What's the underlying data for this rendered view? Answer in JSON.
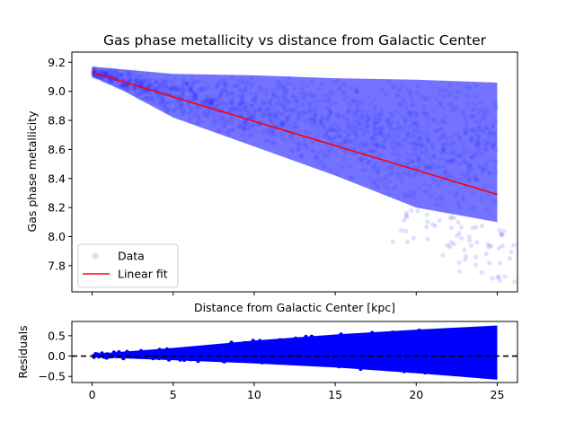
{
  "chart_data": [
    {
      "type": "scatter",
      "title": "Gas phase metallicity vs distance from Galactic Center",
      "xlabel": "Distance from Galactic Center [kpc]",
      "ylabel": "Gas phase metallicity",
      "xlim": [
        -1.25,
        26.25
      ],
      "ylim": [
        7.62,
        9.27
      ],
      "xticks": [
        0,
        5,
        10,
        15,
        20,
        25
      ],
      "xtick_labels_shown": false,
      "yticks": [
        7.8,
        8.0,
        8.2,
        8.4,
        8.6,
        8.8,
        9.0,
        9.2
      ],
      "ytick_labels": [
        "7.8",
        "8.0",
        "8.2",
        "8.4",
        "8.6",
        "8.8",
        "9.0",
        "9.2"
      ],
      "grid": false,
      "legend_position": "bottom-left",
      "series": [
        {
          "name": "Data",
          "kind": "scatter",
          "color": "#0000ff",
          "alpha": 0.07,
          "x_range": [
            0,
            25
          ],
          "upper_envelope": [
            [
              0,
              9.17
            ],
            [
              2,
              9.15
            ],
            [
              5,
              9.12
            ],
            [
              10,
              9.11
            ],
            [
              15,
              9.09
            ],
            [
              20,
              9.08
            ],
            [
              25,
              9.06
            ]
          ],
          "lower_envelope": [
            [
              0,
              9.1
            ],
            [
              2,
              9.0
            ],
            [
              5,
              8.82
            ],
            [
              10,
              8.62
            ],
            [
              15,
              8.42
            ],
            [
              20,
              8.2
            ],
            [
              25,
              8.1
            ]
          ],
          "sparse_outliers_low": [
            [
              20,
              7.95
            ],
            [
              22,
              7.8
            ],
            [
              24,
              7.75
            ],
            [
              25,
              7.68
            ]
          ]
        },
        {
          "name": "Linear fit",
          "kind": "line",
          "color": "#ff0000",
          "x": [
            0,
            25
          ],
          "y": [
            9.13,
            8.29
          ]
        }
      ]
    },
    {
      "type": "scatter",
      "title": "",
      "xlabel": "",
      "ylabel": "Residuals",
      "xlim": [
        -1.25,
        26.25
      ],
      "ylim": [
        -0.65,
        0.85
      ],
      "xticks": [
        0,
        5,
        10,
        15,
        20,
        25
      ],
      "xtick_labels": [
        "0",
        "5",
        "10",
        "15",
        "20",
        "25"
      ],
      "yticks": [
        -0.5,
        0.0,
        0.5
      ],
      "ytick_labels": [
        "−0.5",
        "0.0",
        "0.5"
      ],
      "grid": false,
      "reference_line": {
        "y": 0,
        "style": "dashed",
        "color": "#000000"
      },
      "series": [
        {
          "name": "Residuals",
          "kind": "scatter",
          "color": "#0000ff",
          "x_range": [
            0,
            25
          ],
          "upper_envelope": [
            [
              0,
              0.05
            ],
            [
              5,
              0.2
            ],
            [
              10,
              0.38
            ],
            [
              15,
              0.53
            ],
            [
              20,
              0.65
            ],
            [
              25,
              0.75
            ]
          ],
          "lower_envelope": [
            [
              0,
              -0.03
            ],
            [
              5,
              -0.1
            ],
            [
              10,
              -0.18
            ],
            [
              15,
              -0.28
            ],
            [
              20,
              -0.42
            ],
            [
              25,
              -0.58
            ]
          ]
        }
      ]
    }
  ]
}
